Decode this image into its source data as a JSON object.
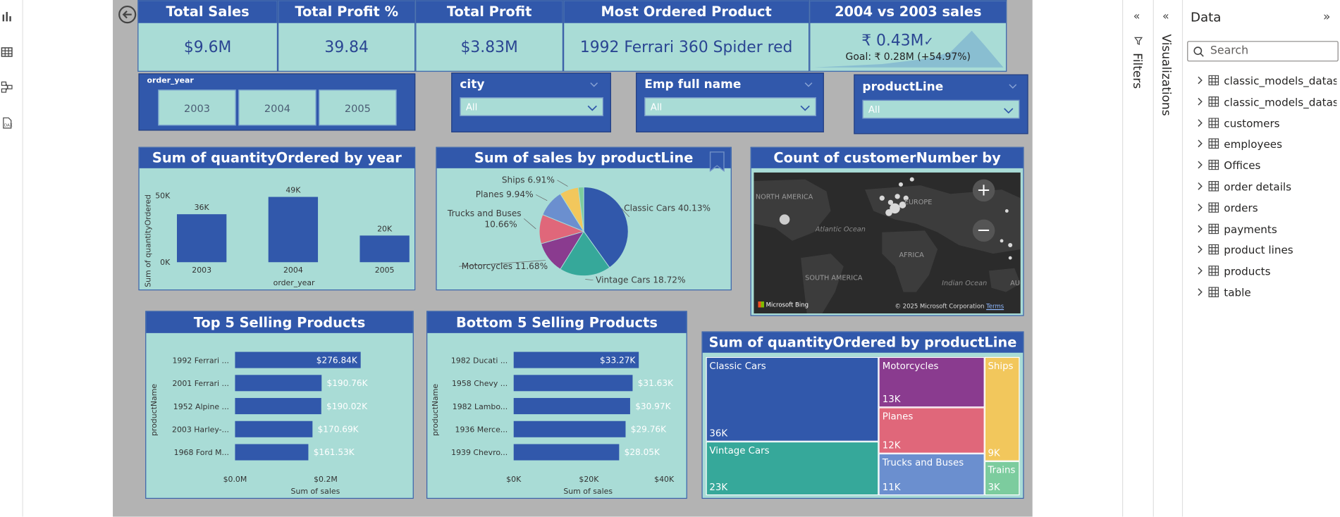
{
  "kpis": [
    {
      "title": "Total Sales",
      "value": "$9.6M"
    },
    {
      "title": "Total Profit %",
      "value": "39.84"
    },
    {
      "title": "Total Profit",
      "value": "$3.83M"
    },
    {
      "title": "Most Ordered Product",
      "value": "1992 Ferrari 360 Spider red"
    }
  ],
  "yoy": {
    "title": "2004 vs 2003 sales",
    "value": "₹ 0.43M",
    "goal": "Goal: ₹ 0.28M (+54.97%)"
  },
  "slicers": {
    "order_year": {
      "title": "order_year",
      "options": [
        "2003",
        "2004",
        "2005"
      ]
    },
    "city": {
      "title": "city",
      "value": "All"
    },
    "employee": {
      "title": "Emp full name",
      "value": "All"
    },
    "productline": {
      "title": "productLine",
      "value": "All"
    }
  },
  "qty_by_year": {
    "title": "Sum of quantityOrdered by year",
    "xlabel": "order_year",
    "ylabel": "Sum of quantityOrdered",
    "yticks": [
      "50K",
      "0K"
    ]
  },
  "sales_by_productline": {
    "title": "Sum of sales by productLine"
  },
  "map": {
    "title": "Count of customerNumber by country",
    "labels": {
      "north_america": "NORTH AMERICA",
      "europe": "EUROPE",
      "atlantic": "Atlantic Ocean",
      "africa": "AFRICA",
      "south_america": "SOUTH AMERICA",
      "indian": "Indian Ocean",
      "au": "AU"
    },
    "bing": "Microsoft Bing",
    "copyright": "© 2025 Microsoft Corporation",
    "terms": "Terms"
  },
  "top5": {
    "title": "Top 5 Selling Products",
    "xlabel": "Sum of sales",
    "ylabel": "productName",
    "xticks": [
      "$0.0M",
      "$0.2M"
    ]
  },
  "bottom5": {
    "title": "Bottom 5 Selling Products",
    "xlabel": "Sum of sales",
    "ylabel": "productName",
    "xticks": [
      "$0K",
      "$20K",
      "$40K"
    ]
  },
  "treemap": {
    "title": "Sum of quantityOrdered by productLine"
  },
  "panes": {
    "filters": "Filters",
    "visualizations": "Visualizations",
    "data": "Data",
    "search_placeholder": "Search"
  },
  "data_tables": [
    "classic_models_dataset",
    "classic_models_dataset...",
    "customers",
    "employees",
    "Offices",
    "order details",
    "orders",
    "payments",
    "product lines",
    "products",
    "table"
  ],
  "colors": {
    "header": "#3158ab",
    "card": "#a9dcd6",
    "bar": "#3158ab"
  },
  "chart_data": [
    {
      "type": "bar",
      "title": "Sum of quantityOrdered by year",
      "categories": [
        "2003",
        "2004",
        "2005"
      ],
      "values": [
        36000,
        49000,
        20000
      ],
      "data_labels": [
        "36K",
        "49K",
        "20K"
      ],
      "xlabel": "order_year",
      "ylabel": "Sum of quantityOrdered",
      "ylim": [
        0,
        50000
      ]
    },
    {
      "type": "pie",
      "title": "Sum of sales by productLine",
      "slices": [
        {
          "label": "Classic Cars",
          "value": 40.13,
          "text": "Classic Cars 40.13%",
          "color": "#3158ab"
        },
        {
          "label": "Vintage Cars",
          "value": 18.72,
          "text": "Vintage Cars 18.72%",
          "color": "#36a89a"
        },
        {
          "label": "Motorcycles",
          "value": 11.68,
          "text": "Motorcycles 11.68%",
          "color": "#8a3b8f"
        },
        {
          "label": "Trucks and Buses",
          "value": 10.66,
          "text": "Trucks and Buses 10.66%",
          "color": "#e0677a"
        },
        {
          "label": "Planes",
          "value": 9.94,
          "text": "Planes 9.94%",
          "color": "#6b8fcf"
        },
        {
          "label": "Ships",
          "value": 6.91,
          "text": "Ships 6.91%",
          "color": "#f2c75c"
        },
        {
          "label": "Trains",
          "value": 1.96,
          "text": "",
          "color": "#7ccc9e"
        }
      ]
    },
    {
      "type": "bar",
      "orientation": "horizontal",
      "title": "Top 5 Selling Products",
      "categories": [
        "1992 Ferrari ...",
        "2001 Ferrari ...",
        "1952 Alpine ...",
        "2003 Harley-...",
        "1968 Ford M..."
      ],
      "values": [
        276840,
        190760,
        190020,
        170690,
        161530
      ],
      "data_labels": [
        "$276.84K",
        "$190.76K",
        "$190.02K",
        "$170.69K",
        "$161.53K"
      ],
      "xlabel": "Sum of sales",
      "ylabel": "productName",
      "xlim": [
        0,
        280000
      ]
    },
    {
      "type": "bar",
      "orientation": "horizontal",
      "title": "Bottom 5 Selling Products",
      "categories": [
        "1982 Ducati ...",
        "1958 Chevy ...",
        "1982 Lambo...",
        "1936 Merce...",
        "1939 Chevro..."
      ],
      "values": [
        33270,
        31630,
        30970,
        29760,
        28050
      ],
      "data_labels": [
        "$33.27K",
        "$31.63K",
        "$30.97K",
        "$29.76K",
        "$28.05K"
      ],
      "xlabel": "Sum of sales",
      "ylabel": "productName",
      "xlim": [
        0,
        42000
      ]
    },
    {
      "type": "treemap",
      "title": "Sum of quantityOrdered by productLine",
      "items": [
        {
          "label": "Classic Cars",
          "value": 36000,
          "value_label": "36K",
          "color": "#3158ab"
        },
        {
          "label": "Vintage Cars",
          "value": 23000,
          "value_label": "23K",
          "color": "#36a89a"
        },
        {
          "label": "Motorcycles",
          "value": 13000,
          "value_label": "13K",
          "color": "#8a3b8f"
        },
        {
          "label": "Planes",
          "value": 12000,
          "value_label": "12K",
          "color": "#e0677a"
        },
        {
          "label": "Trucks and Buses",
          "value": 11000,
          "value_label": "11K",
          "color": "#6b8fcf"
        },
        {
          "label": "Ships",
          "value": 9000,
          "value_label": "9K",
          "color": "#f2c75c"
        },
        {
          "label": "Trains",
          "value": 3000,
          "value_label": "3K",
          "color": "#7ccc9e"
        }
      ]
    }
  ]
}
